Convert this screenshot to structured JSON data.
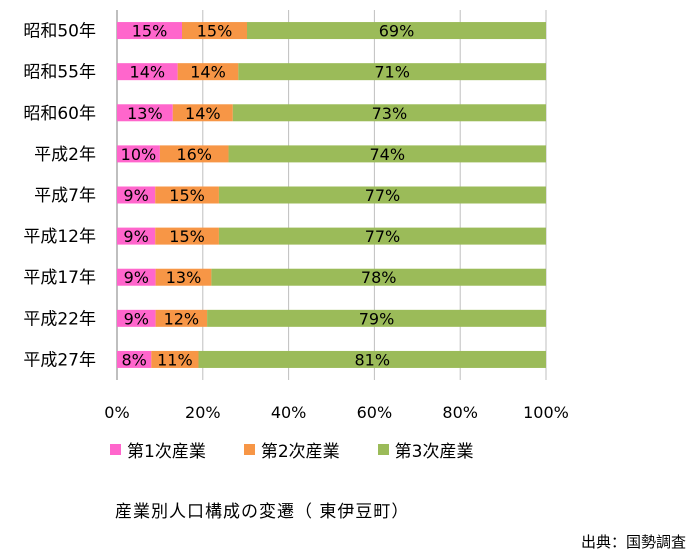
{
  "chart_data": {
    "type": "bar",
    "orientation": "horizontal",
    "stacked": "percent",
    "categories": [
      "昭和50年",
      "昭和55年",
      "昭和60年",
      "平成2年",
      "平成7年",
      "平成12年",
      "平成17年",
      "平成22年",
      "平成27年"
    ],
    "series": [
      {
        "name": "第1次産業",
        "color": "#ff66cc",
        "values": [
          15,
          14,
          13,
          10,
          9,
          9,
          9,
          9,
          8
        ],
        "labels": [
          "15%",
          "14%",
          "13%",
          "10%",
          "9%",
          "9%",
          "9%",
          "9%",
          "8%"
        ]
      },
      {
        "name": "第2次産業",
        "color": "#f79646",
        "values": [
          15,
          14,
          14,
          16,
          15,
          15,
          13,
          12,
          11
        ],
        "labels": [
          "15%",
          "14%",
          "14%",
          "16%",
          "15%",
          "15%",
          "13%",
          "12%",
          "11%"
        ]
      },
      {
        "name": "第3次産業",
        "color": "#9bbb59",
        "values": [
          69,
          71,
          73,
          74,
          77,
          77,
          78,
          79,
          81
        ],
        "labels": [
          "69%",
          "71%",
          "73%",
          "74%",
          "77%",
          "77%",
          "78%",
          "79%",
          "81%"
        ]
      }
    ],
    "xlim": [
      0,
      100
    ],
    "x_ticks": [
      "0%",
      "20%",
      "40%",
      "60%",
      "80%",
      "100%"
    ],
    "grid": true,
    "legend_position": "bottom",
    "title": "産業別人口構成の変遷（ 東伊豆町）"
  },
  "source": "出典：国勢調査"
}
